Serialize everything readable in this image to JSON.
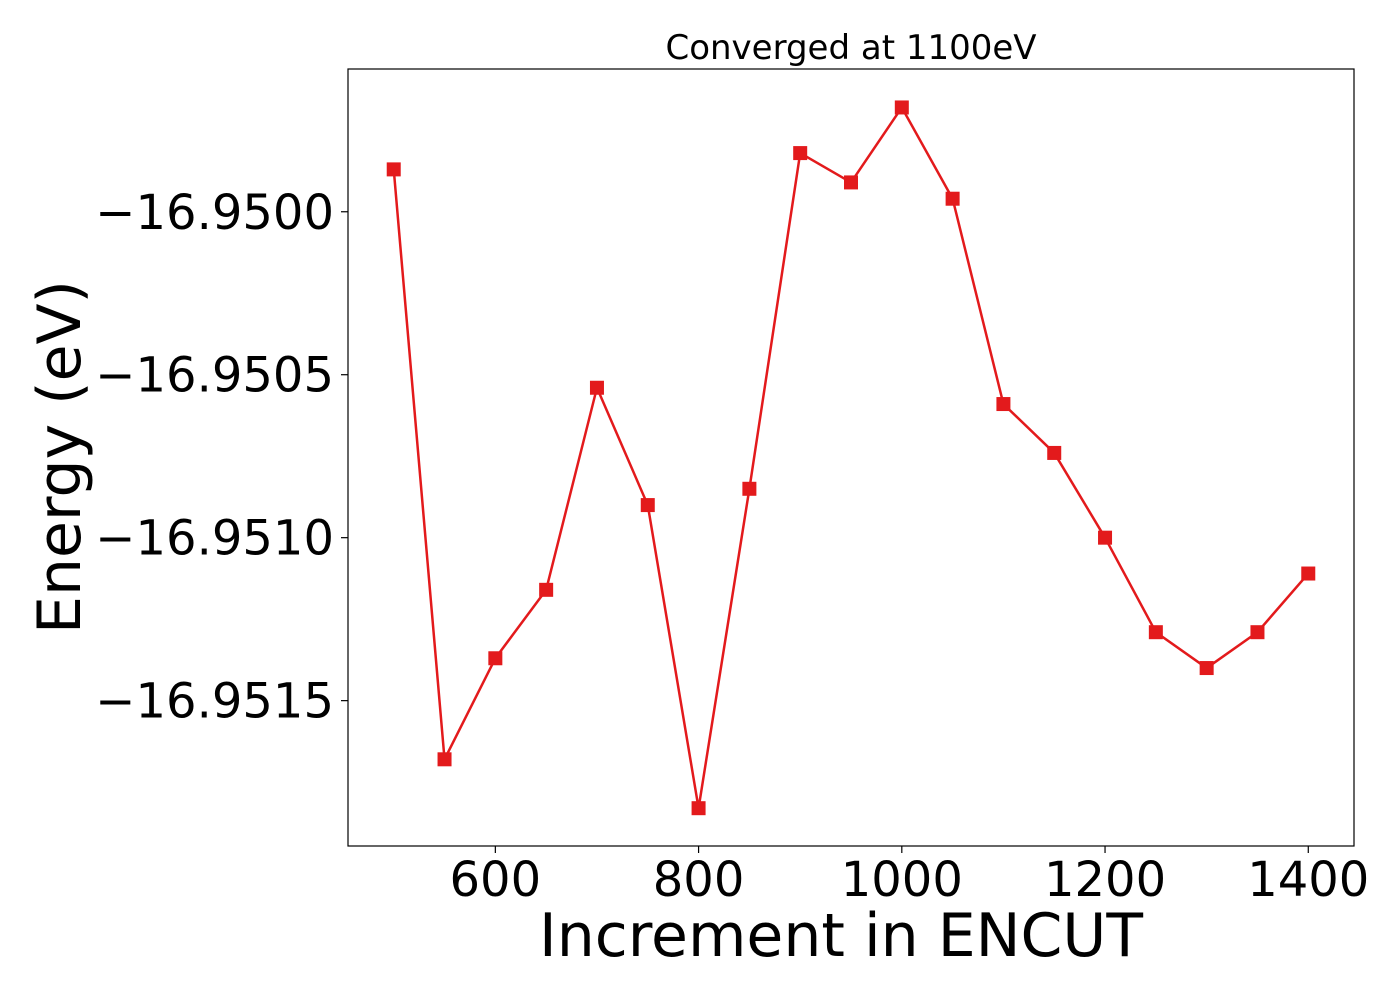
{
  "chart_data": {
    "type": "line",
    "title": "Converged at 1100eV",
    "xlabel": "Increment in ENCUT",
    "ylabel": "Energy (eV)",
    "x": [
      500,
      550,
      600,
      650,
      700,
      750,
      800,
      850,
      900,
      950,
      1000,
      1050,
      1100,
      1150,
      1200,
      1250,
      1300,
      1350,
      1400
    ],
    "series": [
      {
        "name": "",
        "color": "#e31a1c",
        "marker": "square",
        "values": [
          -16.94987,
          -16.95168,
          -16.95137,
          -16.95116,
          -16.95054,
          -16.9509,
          -16.95183,
          -16.95085,
          -16.94982,
          -16.94991,
          -16.94968,
          -16.94996,
          -16.95059,
          -16.95074,
          -16.951,
          -16.95129,
          -16.9514,
          -16.95129,
          -16.95111
        ]
      }
    ],
    "xlim": [
      455,
      1445
    ],
    "ylim": [
      -16.951946,
      -16.949562
    ],
    "xticks": [
      600,
      800,
      1000,
      1200,
      1400
    ],
    "xtick_labels": [
      "600",
      "800",
      "1000",
      "1200",
      "1400"
    ],
    "yticks": [
      -16.9515,
      -16.951,
      -16.9505,
      -16.95
    ],
    "ytick_labels": [
      "−16.9515",
      "−16.9510",
      "−16.9505",
      "−16.9500"
    ],
    "grid": false,
    "legend": "none"
  }
}
